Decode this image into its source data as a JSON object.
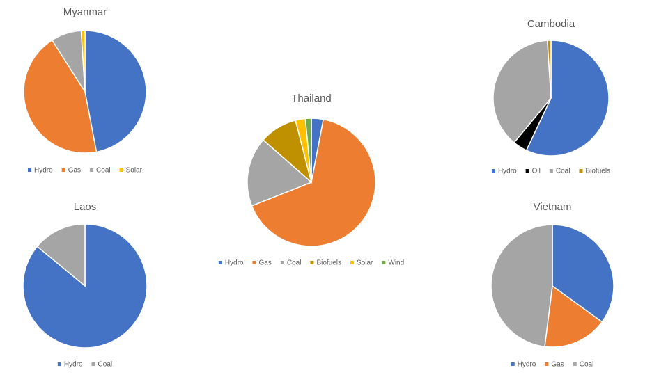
{
  "chart_data": [
    {
      "type": "pie",
      "title": "Myanmar",
      "categories": [
        "Hydro",
        "Gas",
        "Coal",
        "Solar"
      ],
      "values": [
        47,
        44,
        8,
        1
      ],
      "colors": [
        "#4472c4",
        "#ed7d31",
        "#a5a5a5",
        "#ffc000"
      ]
    },
    {
      "type": "pie",
      "title": "Laos",
      "categories": [
        "Hydro",
        "Coal"
      ],
      "values": [
        86,
        14
      ],
      "colors": [
        "#4472c4",
        "#a5a5a5"
      ]
    },
    {
      "type": "pie",
      "title": "Thailand",
      "categories": [
        "Hydro",
        "Gas",
        "Coal",
        "Biofuels",
        "Solar",
        "Wind"
      ],
      "values": [
        3,
        66,
        17.5,
        9.5,
        2.5,
        1.5
      ],
      "colors": [
        "#4472c4",
        "#ed7d31",
        "#a5a5a5",
        "#bf9000",
        "#ffc000",
        "#70ad47"
      ]
    },
    {
      "type": "pie",
      "title": "Cambodia",
      "categories": [
        "Hydro",
        "Oil",
        "Coal",
        "Biofuels"
      ],
      "values": [
        57,
        4,
        38,
        1
      ],
      "colors": [
        "#4472c4",
        "#000000",
        "#a5a5a5",
        "#bf9000"
      ]
    },
    {
      "type": "pie",
      "title": "Vietnam",
      "categories": [
        "Hydro",
        "Gas",
        "Coal"
      ],
      "values": [
        35,
        17,
        48
      ],
      "colors": [
        "#4472c4",
        "#ed7d31",
        "#a5a5a5"
      ]
    }
  ]
}
